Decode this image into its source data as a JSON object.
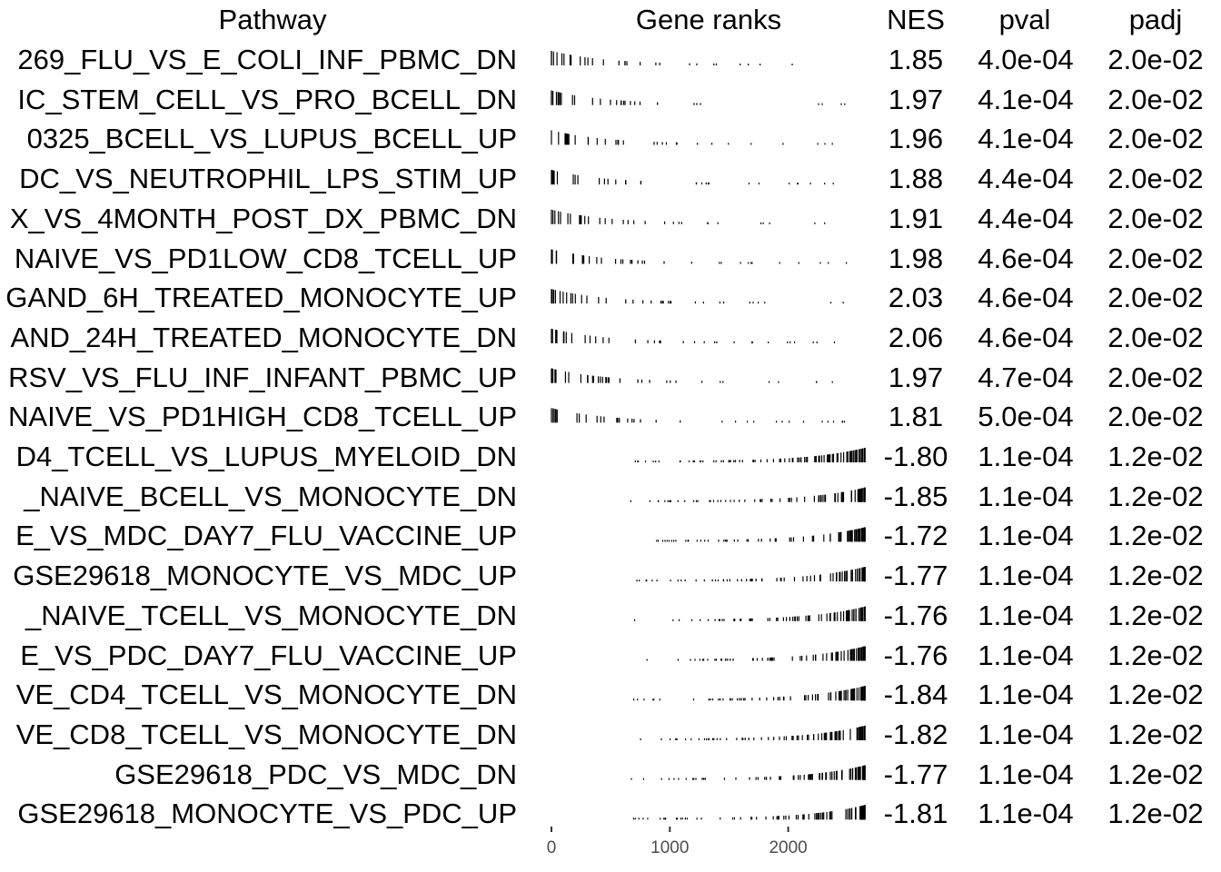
{
  "headers": {
    "pathway": "Pathway",
    "gene_ranks": "Gene ranks",
    "nes": "NES",
    "pval": "pval",
    "padj": "padj"
  },
  "chart_data": {
    "type": "table",
    "columns": [
      "Pathway",
      "Gene ranks",
      "NES",
      "pval",
      "padj"
    ],
    "x_axis": {
      "range": [
        0,
        2650
      ],
      "ticks": [
        0,
        1000,
        2000
      ],
      "tick_labels": [
        "0",
        "1000",
        "2000"
      ]
    },
    "rows": [
      {
        "pathway": "269_FLU_VS_E_COLI_INF_PBMC_DN",
        "nes": "1.85",
        "pval": "4.0e-04",
        "padj": "2.0e-02"
      },
      {
        "pathway": "IC_STEM_CELL_VS_PRO_BCELL_DN",
        "nes": "1.97",
        "pval": "4.1e-04",
        "padj": "2.0e-02"
      },
      {
        "pathway": "0325_BCELL_VS_LUPUS_BCELL_UP",
        "nes": "1.96",
        "pval": "4.1e-04",
        "padj": "2.0e-02"
      },
      {
        "pathway": "DC_VS_NEUTROPHIL_LPS_STIM_UP",
        "nes": "1.88",
        "pval": "4.4e-04",
        "padj": "2.0e-02"
      },
      {
        "pathway": "X_VS_4MONTH_POST_DX_PBMC_DN",
        "nes": "1.91",
        "pval": "4.4e-04",
        "padj": "2.0e-02"
      },
      {
        "pathway": "NAIVE_VS_PD1LOW_CD8_TCELL_UP",
        "nes": "1.98",
        "pval": "4.6e-04",
        "padj": "2.0e-02"
      },
      {
        "pathway": "GAND_6H_TREATED_MONOCYTE_UP",
        "nes": "2.03",
        "pval": "4.6e-04",
        "padj": "2.0e-02"
      },
      {
        "pathway": "AND_24H_TREATED_MONOCYTE_DN",
        "nes": "2.06",
        "pval": "4.6e-04",
        "padj": "2.0e-02"
      },
      {
        "pathway": "RSV_VS_FLU_INF_INFANT_PBMC_UP",
        "nes": "1.97",
        "pval": "4.7e-04",
        "padj": "2.0e-02"
      },
      {
        "pathway": "NAIVE_VS_PD1HIGH_CD8_TCELL_UP",
        "nes": "1.81",
        "pval": "5.0e-04",
        "padj": "2.0e-02"
      },
      {
        "pathway": "D4_TCELL_VS_LUPUS_MYELOID_DN",
        "nes": "-1.80",
        "pval": "1.1e-04",
        "padj": "1.2e-02"
      },
      {
        "pathway": "_NAIVE_BCELL_VS_MONOCYTE_DN",
        "nes": "-1.85",
        "pval": "1.1e-04",
        "padj": "1.2e-02"
      },
      {
        "pathway": "E_VS_MDC_DAY7_FLU_VACCINE_UP",
        "nes": "-1.72",
        "pval": "1.1e-04",
        "padj": "1.2e-02"
      },
      {
        "pathway": "GSE29618_MONOCYTE_VS_MDC_UP",
        "nes": "-1.77",
        "pval": "1.1e-04",
        "padj": "1.2e-02"
      },
      {
        "pathway": "_NAIVE_TCELL_VS_MONOCYTE_DN",
        "nes": "-1.76",
        "pval": "1.1e-04",
        "padj": "1.2e-02"
      },
      {
        "pathway": "E_VS_PDC_DAY7_FLU_VACCINE_UP",
        "nes": "-1.76",
        "pval": "1.1e-04",
        "padj": "1.2e-02"
      },
      {
        "pathway": "VE_CD4_TCELL_VS_MONOCYTE_DN",
        "nes": "-1.84",
        "pval": "1.1e-04",
        "padj": "1.2e-02"
      },
      {
        "pathway": "VE_CD8_TCELL_VS_MONOCYTE_DN",
        "nes": "-1.82",
        "pval": "1.1e-04",
        "padj": "1.2e-02"
      },
      {
        "pathway": "GSE29618_PDC_VS_MDC_DN",
        "nes": "-1.77",
        "pval": "1.1e-04",
        "padj": "1.2e-02"
      },
      {
        "pathway": "GSE29618_MONOCYTE_VS_PDC_UP",
        "nes": "-1.81",
        "pval": "1.1e-04",
        "padj": "1.2e-02"
      }
    ]
  }
}
